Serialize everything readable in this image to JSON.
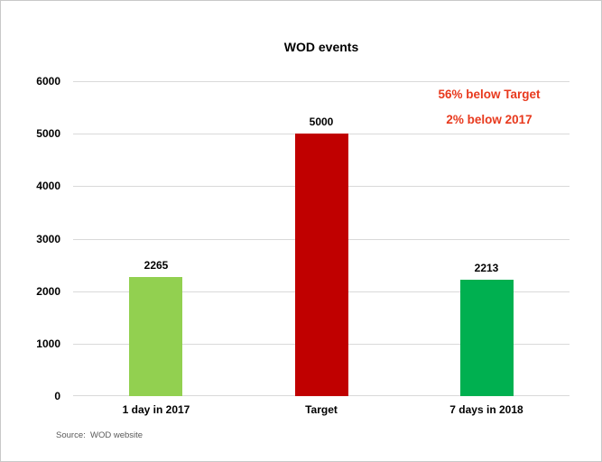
{
  "chart_data": {
    "type": "bar",
    "title": "WOD events",
    "categories": [
      "1 day in 2017",
      "Target",
      "7 days in 2018"
    ],
    "values": [
      2265,
      5000,
      2213
    ],
    "value_labels": [
      "2265",
      "5000",
      "2213"
    ],
    "bar_colors": [
      "#92D050",
      "#C00000",
      "#00B050"
    ],
    "xlabel": "",
    "ylabel": "",
    "ylim": [
      0,
      6000
    ],
    "ytick_step": 1000,
    "ytick_labels": [
      "0",
      "1000",
      "2000",
      "3000",
      "4000",
      "5000",
      "6000"
    ],
    "grid": true,
    "gridline_color": "#D9D9D9",
    "legend": "none",
    "annotations": [
      {
        "text": "56% below Target",
        "color": "#E8391D"
      },
      {
        "text": "2% below 2017",
        "color": "#E8391D"
      }
    ],
    "source_note": "Source:  WOD website"
  }
}
